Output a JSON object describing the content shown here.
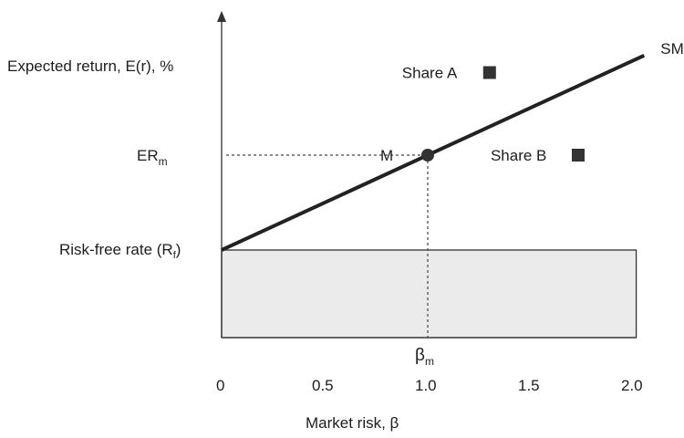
{
  "chart_data": {
    "type": "line",
    "title": "",
    "xlabel": "Market risk, β",
    "ylabel": "Expected return, E(r), %",
    "xlim": [
      0,
      2.1
    ],
    "x_ticks": [
      {
        "value": 0,
        "label": "0"
      },
      {
        "value": 0.5,
        "label": "0.5"
      },
      {
        "value": 1.0,
        "label": "1.0"
      },
      {
        "value": 1.5,
        "label": "1.5"
      },
      {
        "value": 2.0,
        "label": "2.0"
      }
    ],
    "y_markers": {
      "risk_free": {
        "label": "Risk-free rate (Rf)",
        "text": "Risk-free rate (R",
        "sub": "f",
        "tail": ")"
      },
      "market_return": {
        "label": "ERm",
        "text": "ER",
        "sub": "m"
      }
    },
    "beta_m": {
      "label": "βm",
      "text": "β",
      "sub": "m",
      "value": 1.0
    },
    "series": [
      {
        "name": "SML",
        "x": [
          0,
          2.05
        ],
        "y_relative": [
          0,
          2.05
        ]
      }
    ],
    "points": [
      {
        "label": "M",
        "beta": 1.0,
        "y_relative": 1.0,
        "marker": "circle"
      },
      {
        "label": "Share A",
        "beta": 1.3,
        "y_relative": 1.87,
        "marker": "square"
      },
      {
        "label": "Share B",
        "beta": 1.73,
        "y_relative": 1.0,
        "marker": "square"
      }
    ],
    "risk_free_region": {
      "x": [
        0,
        2.1
      ],
      "shaded": true
    },
    "colors": {
      "line": "#222222",
      "marker": "#333333",
      "region_fill": "#ebebeb",
      "guide": "#444444"
    }
  }
}
